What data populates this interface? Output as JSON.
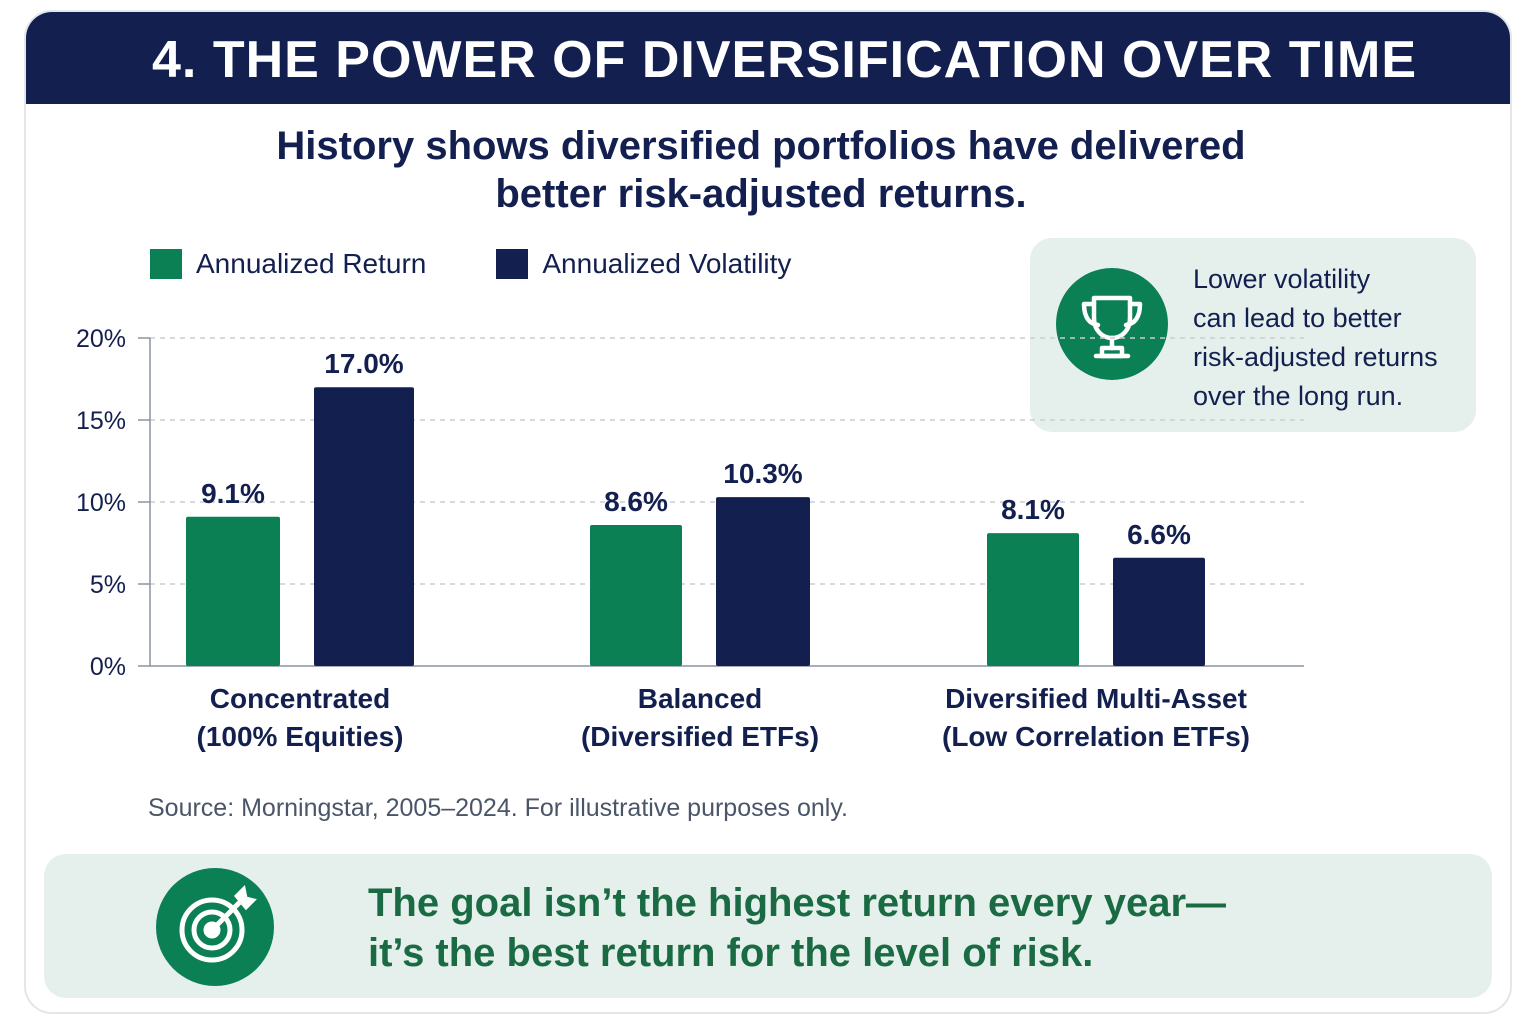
{
  "header": {
    "title": "4. THE POWER OF DIVERSIFICATION OVER TIME"
  },
  "subtitle": {
    "line1": "History shows diversified portfolios have delivered",
    "line2": "better risk-adjusted returns."
  },
  "callout": {
    "icon": "trophy-icon",
    "lines": [
      "Lower volatility",
      "can lead to better",
      "risk-adjusted returns",
      "over the long run."
    ]
  },
  "source": "Source: Morningstar, 2005–2024. For illustrative purposes only.",
  "bottom_message": {
    "icon": "target-icon",
    "line1": "The goal isn’t the highest return every year—",
    "line2": "it’s the best return for the level of risk."
  },
  "colors": {
    "return": "#0b8055",
    "volatility": "#13204f",
    "header": "#13204f",
    "accent_text": "#1a6b43",
    "panel": "#e5f0ec"
  },
  "chart_data": {
    "type": "bar",
    "categories": [
      [
        "Concentrated",
        "(100% Equities)"
      ],
      [
        "Balanced",
        "(Diversified ETFs)"
      ],
      [
        "Diversified Multi-Asset",
        "(Low Correlation ETFs)"
      ]
    ],
    "series": [
      {
        "name": "Annualized Return",
        "values": [
          9.1,
          8.6,
          8.1
        ],
        "labels": [
          "9.1%",
          "8.6%",
          "8.1%"
        ]
      },
      {
        "name": "Annualized Volatility",
        "values": [
          17.0,
          10.3,
          6.6
        ],
        "labels": [
          "17.0%",
          "10.3%",
          "6.6%"
        ]
      }
    ],
    "yticks": [
      "0%",
      "5%",
      "10%",
      "15%",
      "20%"
    ],
    "ylim": [
      0,
      20
    ],
    "grid": true,
    "legend_position": "top-left"
  }
}
